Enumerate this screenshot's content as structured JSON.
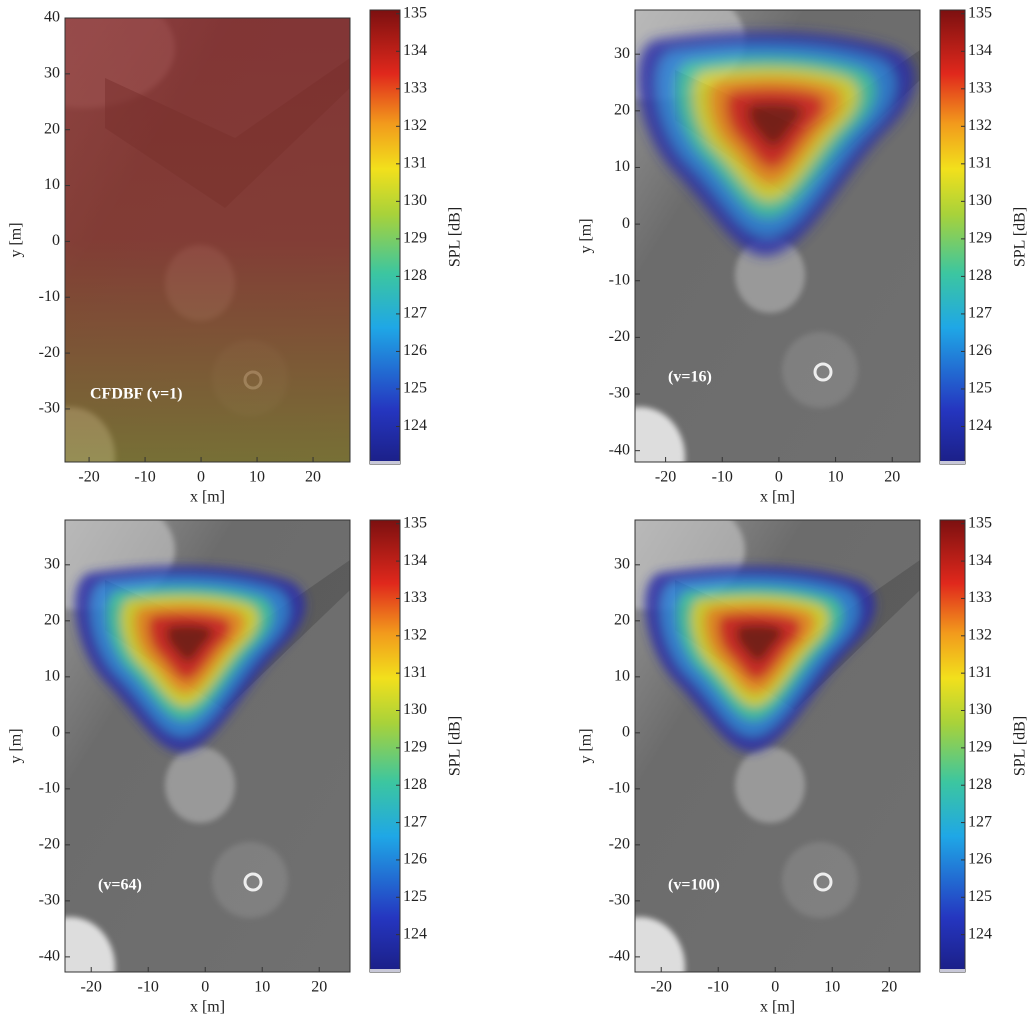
{
  "chart_data": [
    {
      "type": "heatmap",
      "xlabel": "x [m]",
      "ylabel": "y [m]",
      "annotation": "CFDBF (v=1)",
      "xlim": [
        -24.3,
        26.6
      ],
      "ylim": [
        -39.5,
        40
      ],
      "xticks": [
        -20,
        -10,
        0,
        10,
        20
      ],
      "yticks": [
        40,
        30,
        20,
        10,
        0,
        -10,
        -20,
        -30
      ],
      "colorbar": {
        "label": "SPL [dB]",
        "lim": [
          123,
          135.1
        ],
        "ticks": [
          124,
          125,
          126,
          127,
          128,
          129,
          130,
          131,
          132,
          133,
          134,
          135
        ]
      }
    },
    {
      "type": "heatmap",
      "xlabel": "x [m]",
      "ylabel": "y [m]",
      "annotation": "(v=16)",
      "xlim": [
        -25.4,
        24.9
      ],
      "ylim": [
        -42,
        37.8
      ],
      "xticks": [
        -20,
        -10,
        0,
        10,
        20
      ],
      "yticks": [
        30,
        20,
        10,
        0,
        -10,
        -20,
        -30,
        -40
      ],
      "colorbar": {
        "label": "SPL [dB]",
        "lim": [
          123,
          135.1
        ],
        "ticks": [
          124,
          125,
          126,
          127,
          128,
          129,
          130,
          131,
          132,
          133,
          134,
          135
        ]
      }
    },
    {
      "type": "heatmap",
      "xlabel": "x [m]",
      "ylabel": "y [m]",
      "annotation": "(v=64)",
      "xlim": [
        -24.6,
        25.4
      ],
      "ylim": [
        -42.7,
        38
      ],
      "xticks": [
        -20,
        -10,
        0,
        10,
        20
      ],
      "yticks": [
        30,
        20,
        10,
        0,
        -10,
        -20,
        -30,
        -40
      ],
      "colorbar": {
        "label": "SPL [dB]",
        "lim": [
          123,
          135.1
        ],
        "ticks": [
          124,
          125,
          126,
          127,
          128,
          129,
          130,
          131,
          132,
          133,
          134,
          135
        ]
      }
    },
    {
      "type": "heatmap",
      "xlabel": "x [m]",
      "ylabel": "y [m]",
      "annotation": "(v=100)",
      "xlim": [
        -24.6,
        25.4
      ],
      "ylim": [
        -42.7,
        38
      ],
      "xticks": [
        -20,
        -10,
        0,
        10,
        20
      ],
      "yticks": [
        30,
        20,
        10,
        0,
        -10,
        -20,
        -30,
        -40
      ],
      "colorbar": {
        "label": "SPL [dB]",
        "lim": [
          123,
          135.1
        ],
        "ticks": [
          124,
          125,
          126,
          127,
          128,
          129,
          130,
          131,
          132,
          133,
          134,
          135
        ]
      }
    }
  ]
}
